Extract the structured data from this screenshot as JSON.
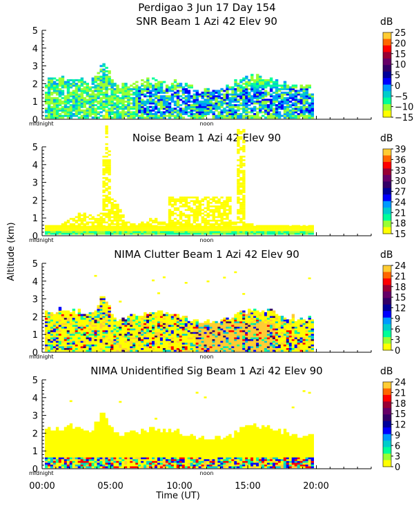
{
  "figure": {
    "title": "Perdigao    3 Jun 17 Day 154",
    "ylabel": "Altitude (km)",
    "xlabel": "Time (UT)",
    "xticks": [
      "00:00",
      "05:00",
      "10:00",
      "15:00",
      "20:00"
    ],
    "midnight_label": "midnight",
    "noon_label": "noon"
  },
  "colors": {
    "scale": [
      "#ffff00",
      "#99ff33",
      "#00ff99",
      "#00cccc",
      "#0099ff",
      "#0000ff",
      "#000099",
      "#330066",
      "#660066",
      "#990033",
      "#ff0000",
      "#ff6600",
      "#ffcc33"
    ]
  },
  "chart_data": [
    {
      "type": "heatmap",
      "title": "SNR Beam 1 Azi  42 Elev 90",
      "colorbar_unit": "dB",
      "colorbar_ticks": [
        "25",
        "20",
        "15",
        "10",
        "5",
        "0",
        "−5",
        "−10",
        "−15"
      ],
      "colorbar_range": [
        -15,
        25
      ],
      "ylim": [
        0,
        5
      ],
      "yticks": [
        0,
        1,
        2,
        3,
        4,
        5
      ],
      "xlim_hours": [
        0,
        24
      ],
      "data_extent_hours": [
        0.2,
        19.8
      ],
      "dominant_colors": [
        "#99ff33",
        "#00cccc",
        "#0099ff",
        "#0000ff"
      ]
    },
    {
      "type": "heatmap",
      "title": "Noise Beam 1 Azi  42 Elev 90",
      "colorbar_unit": "dB",
      "colorbar_ticks": [
        "39",
        "36",
        "33",
        "30",
        "27",
        "24",
        "21",
        "18",
        "15"
      ],
      "colorbar_range": [
        15,
        39
      ],
      "ylim": [
        0,
        5
      ],
      "yticks": [
        0,
        1,
        2,
        3,
        4,
        5
      ],
      "xlim_hours": [
        0,
        24
      ],
      "data_extent_hours": [
        0.2,
        19.8
      ],
      "dominant_colors": [
        "#ffff00",
        "#99ff33",
        "#00ff99"
      ]
    },
    {
      "type": "heatmap",
      "title": "NIMA Clutter Beam 1 Azi  42 Elev 90",
      "colorbar_unit": "dB",
      "colorbar_ticks": [
        "24",
        "21",
        "18",
        "15",
        "12",
        "9",
        "6",
        "3",
        "0"
      ],
      "colorbar_range": [
        0,
        24
      ],
      "ylim": [
        0,
        5
      ],
      "yticks": [
        0,
        1,
        2,
        3,
        4,
        5
      ],
      "xlim_hours": [
        0,
        24
      ],
      "data_extent_hours": [
        0.2,
        19.8
      ],
      "dominant_colors": [
        "#ffff00",
        "#ffcc33",
        "#00cccc",
        "#0000ff",
        "#ff0000"
      ]
    },
    {
      "type": "heatmap",
      "title": "NIMA Unidentified Sig Beam 1 Azi  42 Elev 90",
      "colorbar_unit": "dB",
      "colorbar_ticks": [
        "24",
        "21",
        "18",
        "15",
        "12",
        "9",
        "6",
        "3",
        "0"
      ],
      "colorbar_range": [
        0,
        24
      ],
      "ylim": [
        0,
        5
      ],
      "yticks": [
        0,
        1,
        2,
        3,
        4,
        5
      ],
      "xlim_hours": [
        0,
        24
      ],
      "data_extent_hours": [
        0.2,
        19.8
      ],
      "dominant_colors": [
        "#ffff00",
        "#ffcc33",
        "#00cccc",
        "#0000ff"
      ]
    }
  ]
}
